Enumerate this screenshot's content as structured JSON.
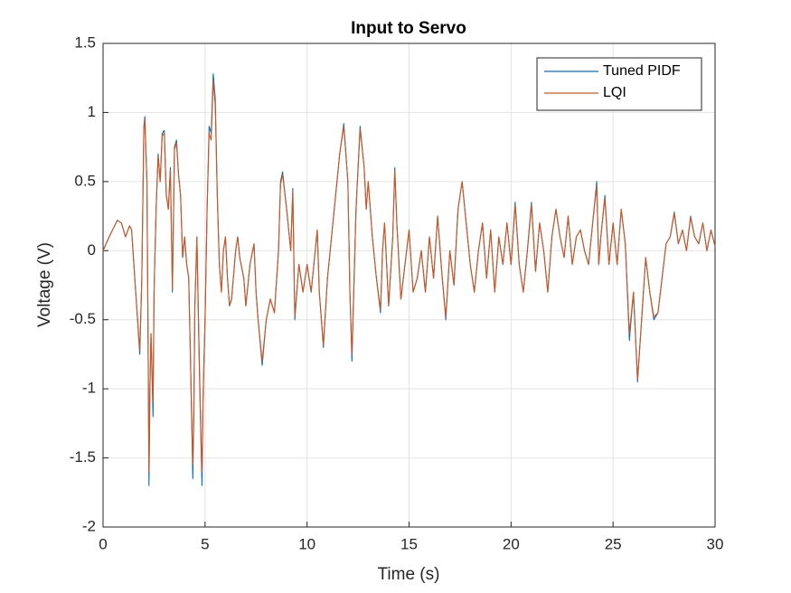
{
  "chart_data": {
    "type": "line",
    "title": "Input to Servo",
    "xlabel": "Time (s)",
    "ylabel": "Voltage (V)",
    "x": [
      0,
      0.3,
      0.7,
      0.9,
      1.1,
      1.3,
      1.4,
      1.6,
      1.8,
      1.9,
      2.0,
      2.05,
      2.15,
      2.2,
      2.25,
      2.3,
      2.35,
      2.4,
      2.45,
      2.5,
      2.6,
      2.7,
      2.8,
      2.9,
      3.0,
      3.1,
      3.2,
      3.3,
      3.4,
      3.5,
      3.6,
      3.7,
      3.8,
      3.9,
      4.0,
      4.1,
      4.2,
      4.3,
      4.4,
      4.45,
      4.5,
      4.6,
      4.7,
      4.8,
      4.85,
      4.9,
      5.0,
      5.1,
      5.2,
      5.3,
      5.4,
      5.5,
      5.6,
      5.7,
      5.8,
      5.9,
      6.0,
      6.1,
      6.2,
      6.3,
      6.5,
      6.6,
      6.7,
      6.9,
      7.0,
      7.2,
      7.4,
      7.5,
      7.6,
      7.8,
      8.0,
      8.2,
      8.4,
      8.6,
      8.7,
      8.8,
      9.0,
      9.2,
      9.3,
      9.4,
      9.6,
      9.8,
      10.0,
      10.2,
      10.4,
      10.5,
      10.6,
      10.8,
      11.0,
      11.2,
      11.4,
      11.6,
      11.8,
      12.0,
      12.1,
      12.2,
      12.4,
      12.6,
      12.8,
      12.9,
      13.0,
      13.2,
      13.4,
      13.6,
      13.7,
      13.8,
      14.0,
      14.2,
      14.3,
      14.4,
      14.6,
      14.8,
      15.0,
      15.2,
      15.4,
      15.6,
      15.8,
      16.0,
      16.2,
      16.4,
      16.6,
      16.8,
      17.0,
      17.2,
      17.4,
      17.6,
      17.8,
      18.0,
      18.2,
      18.4,
      18.6,
      18.8,
      19.0,
      19.2,
      19.4,
      19.6,
      19.8,
      20.0,
      20.2,
      20.4,
      20.6,
      20.8,
      21.0,
      21.2,
      21.4,
      21.6,
      21.8,
      22.0,
      22.2,
      22.4,
      22.6,
      22.8,
      23.0,
      23.2,
      23.4,
      23.6,
      23.8,
      24.0,
      24.2,
      24.3,
      24.4,
      24.6,
      24.8,
      25.0,
      25.2,
      25.4,
      25.6,
      25.8,
      26.0,
      26.2,
      26.4,
      26.6,
      26.8,
      27.0,
      27.2,
      27.4,
      27.6,
      27.8,
      28.0,
      28.2,
      28.4,
      28.6,
      28.8,
      29.0,
      29.2,
      29.4,
      29.6,
      29.8,
      30.0
    ],
    "series": [
      {
        "name": "Tuned PIDF",
        "color": "#0072bd",
        "values": [
          0,
          0.1,
          0.22,
          0.2,
          0.1,
          0.18,
          0.15,
          -0.3,
          -0.75,
          -0.2,
          0.9,
          0.97,
          0.5,
          -0.5,
          -1.7,
          -1.0,
          -0.6,
          -0.9,
          -1.2,
          -0.3,
          0.3,
          0.7,
          0.5,
          0.85,
          0.87,
          0.4,
          0.3,
          0.6,
          -0.3,
          0.75,
          0.8,
          0.55,
          0.4,
          -0.05,
          0.1,
          -0.1,
          -0.2,
          -0.9,
          -1.65,
          -1.2,
          -0.4,
          0.1,
          -0.7,
          -1.4,
          -1.7,
          -1.1,
          -0.5,
          0.3,
          0.9,
          0.85,
          1.28,
          1.1,
          0.4,
          -0.1,
          -0.3,
          0,
          0.1,
          -0.2,
          -0.4,
          -0.35,
          0,
          0.1,
          -0.05,
          -0.2,
          -0.4,
          -0.1,
          0.05,
          -0.3,
          -0.5,
          -0.83,
          -0.5,
          -0.35,
          -0.45,
          0,
          0.5,
          0.57,
          0.3,
          0,
          0.45,
          -0.5,
          -0.1,
          -0.3,
          -0.1,
          -0.3,
          0,
          0.15,
          -0.3,
          -0.7,
          -0.2,
          0.1,
          0.4,
          0.7,
          0.92,
          0.5,
          -0.3,
          -0.8,
          0.3,
          0.9,
          0.6,
          0.3,
          0.5,
          0.1,
          -0.2,
          -0.45,
          0,
          0.2,
          -0.4,
          0.1,
          0.6,
          0.2,
          -0.35,
          -0.1,
          0.15,
          -0.3,
          -0.2,
          0,
          -0.3,
          0.1,
          -0.2,
          0.25,
          -0.15,
          -0.5,
          0,
          -0.25,
          0.3,
          0.5,
          0.2,
          -0.1,
          -0.3,
          0,
          0.2,
          -0.2,
          0.15,
          -0.3,
          0.1,
          -0.1,
          0.2,
          -0.1,
          0.35,
          -0.1,
          -0.3,
          0,
          0.35,
          -0.15,
          0.2,
          0,
          -0.3,
          0.1,
          0.3,
          0.1,
          -0.05,
          0.25,
          -0.1,
          0.1,
          0.15,
          0,
          -0.1,
          0.2,
          0.5,
          -0.1,
          0.1,
          0.4,
          -0.1,
          0.2,
          -0.1,
          0.3,
          0.05,
          -0.65,
          -0.3,
          -0.95,
          -0.5,
          -0.05,
          -0.3,
          -0.5,
          -0.45,
          -0.2,
          0.05,
          0.1,
          0.28,
          0.05,
          0.15,
          0,
          0.25,
          0.1,
          0.05,
          0.2,
          0,
          0.15,
          0.03
        ]
      },
      {
        "name": "LQI",
        "color": "#d95319",
        "values": [
          0,
          0.1,
          0.22,
          0.2,
          0.1,
          0.18,
          0.15,
          -0.3,
          -0.72,
          -0.2,
          0.88,
          0.95,
          0.5,
          -0.45,
          -1.6,
          -0.95,
          -0.6,
          -0.85,
          -1.1,
          -0.3,
          0.3,
          0.68,
          0.5,
          0.83,
          0.85,
          0.4,
          0.3,
          0.58,
          -0.28,
          0.73,
          0.78,
          0.55,
          0.4,
          -0.05,
          0.1,
          -0.1,
          -0.2,
          -0.88,
          -1.55,
          -1.15,
          -0.4,
          0.1,
          -0.65,
          -1.35,
          -1.6,
          -1.05,
          -0.5,
          0.3,
          0.85,
          0.8,
          1.23,
          1.05,
          0.4,
          -0.1,
          -0.3,
          0,
          0.1,
          -0.2,
          -0.4,
          -0.35,
          0,
          0.1,
          -0.05,
          -0.2,
          -0.4,
          -0.1,
          0.05,
          -0.3,
          -0.5,
          -0.8,
          -0.5,
          -0.35,
          -0.45,
          0,
          0.48,
          0.55,
          0.3,
          0,
          0.43,
          -0.48,
          -0.1,
          -0.3,
          -0.1,
          -0.3,
          0,
          0.15,
          -0.3,
          -0.68,
          -0.2,
          0.1,
          0.4,
          0.7,
          0.9,
          0.5,
          -0.3,
          -0.75,
          0.3,
          0.88,
          0.6,
          0.3,
          0.5,
          0.1,
          -0.2,
          -0.43,
          0,
          0.2,
          -0.4,
          0.1,
          0.58,
          0.2,
          -0.35,
          -0.1,
          0.15,
          -0.3,
          -0.2,
          0,
          -0.3,
          0.1,
          -0.2,
          0.25,
          -0.15,
          -0.48,
          0,
          -0.25,
          0.3,
          0.5,
          0.2,
          -0.1,
          -0.3,
          0,
          0.2,
          -0.2,
          0.15,
          -0.3,
          0.1,
          -0.1,
          0.2,
          -0.1,
          0.33,
          -0.1,
          -0.3,
          0,
          0.33,
          -0.15,
          0.2,
          0,
          -0.3,
          0.1,
          0.3,
          0.1,
          -0.05,
          0.25,
          -0.1,
          0.1,
          0.15,
          0,
          -0.1,
          0.2,
          0.47,
          -0.1,
          0.1,
          0.38,
          -0.1,
          0.2,
          -0.1,
          0.3,
          0.05,
          -0.6,
          -0.3,
          -0.93,
          -0.5,
          -0.05,
          -0.3,
          -0.48,
          -0.45,
          -0.2,
          0.05,
          0.1,
          0.27,
          0.05,
          0.15,
          0,
          0.24,
          0.1,
          0.05,
          0.2,
          0,
          0.15,
          0.03
        ]
      }
    ],
    "xlim": [
      0,
      30
    ],
    "xticks": [
      0,
      5,
      10,
      15,
      20,
      25,
      30
    ],
    "ylim": [
      -2,
      1.5
    ],
    "yticks": [
      -2,
      -1.5,
      -1,
      -0.5,
      0,
      0.5,
      1,
      1.5
    ],
    "grid": true,
    "legend": "northeast"
  }
}
